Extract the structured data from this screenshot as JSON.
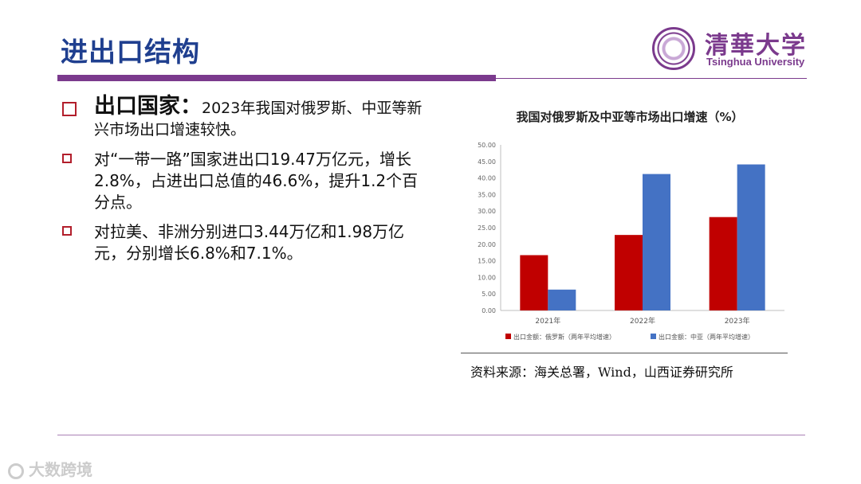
{
  "header": {
    "title": "进出口结构",
    "logo_cn": "清華大学",
    "logo_en": "Tsinghua University"
  },
  "bullets": [
    {
      "lead": "出口国家：",
      "text": "2023年我国对俄罗斯、中亚等新兴市场出口增速较快。"
    },
    {
      "text": "对“一带一路”国家进出口19.47万亿元，增长2.8%，占进出口总值的46.6%，提升1.2个百分点。"
    },
    {
      "text": "对拉美、非洲分别进口3.44万亿和1.98万亿元，分别增长6.8%和7.1%。"
    }
  ],
  "chart_data": {
    "type": "bar",
    "title": "我国对俄罗斯及中亚等市场出口增速（%）",
    "categories": [
      "2021年",
      "2022年",
      "2023年"
    ],
    "series": [
      {
        "name": "出口金额：俄罗斯（两年平均增速）",
        "values": [
          16.7,
          22.8,
          28.2
        ],
        "color": "#c00000"
      },
      {
        "name": "出口金额：中亚（两年平均增速）",
        "values": [
          6.3,
          41.2,
          44.1
        ],
        "color": "#4472c4"
      }
    ],
    "yticks": [
      "0.00",
      "5.00",
      "10.00",
      "15.00",
      "20.00",
      "25.00",
      "30.00",
      "35.00",
      "40.00",
      "45.00",
      "50.00"
    ],
    "ylim": [
      0,
      50
    ],
    "legend_position": "bottom",
    "grid": false
  },
  "source": "资料来源：海关总署，Wind，山西证券研究所",
  "watermark": "大数跨境",
  "colors": {
    "accent": "#7b3a8d",
    "title": "#1f3f8f",
    "bullet": "#b21e2b"
  }
}
